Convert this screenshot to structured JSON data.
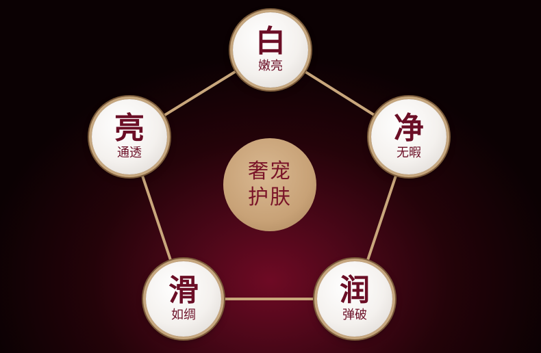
{
  "center": {
    "line1": "奢宠",
    "line2": "护肤"
  },
  "nodes": [
    {
      "id": "bai",
      "title": "白",
      "subtitle": "嫩亮"
    },
    {
      "id": "jing",
      "title": "净",
      "subtitle": "无暇"
    },
    {
      "id": "run",
      "title": "润",
      "subtitle": "弹破"
    },
    {
      "id": "hua",
      "title": "滑",
      "subtitle": "如绸"
    },
    {
      "id": "liang",
      "title": "亮",
      "subtitle": "通透"
    }
  ],
  "colors": {
    "line": "#c9a77c",
    "text": "#6b0e26",
    "center_fill": "#c8a277",
    "background_glow": "#6e0a24"
  }
}
